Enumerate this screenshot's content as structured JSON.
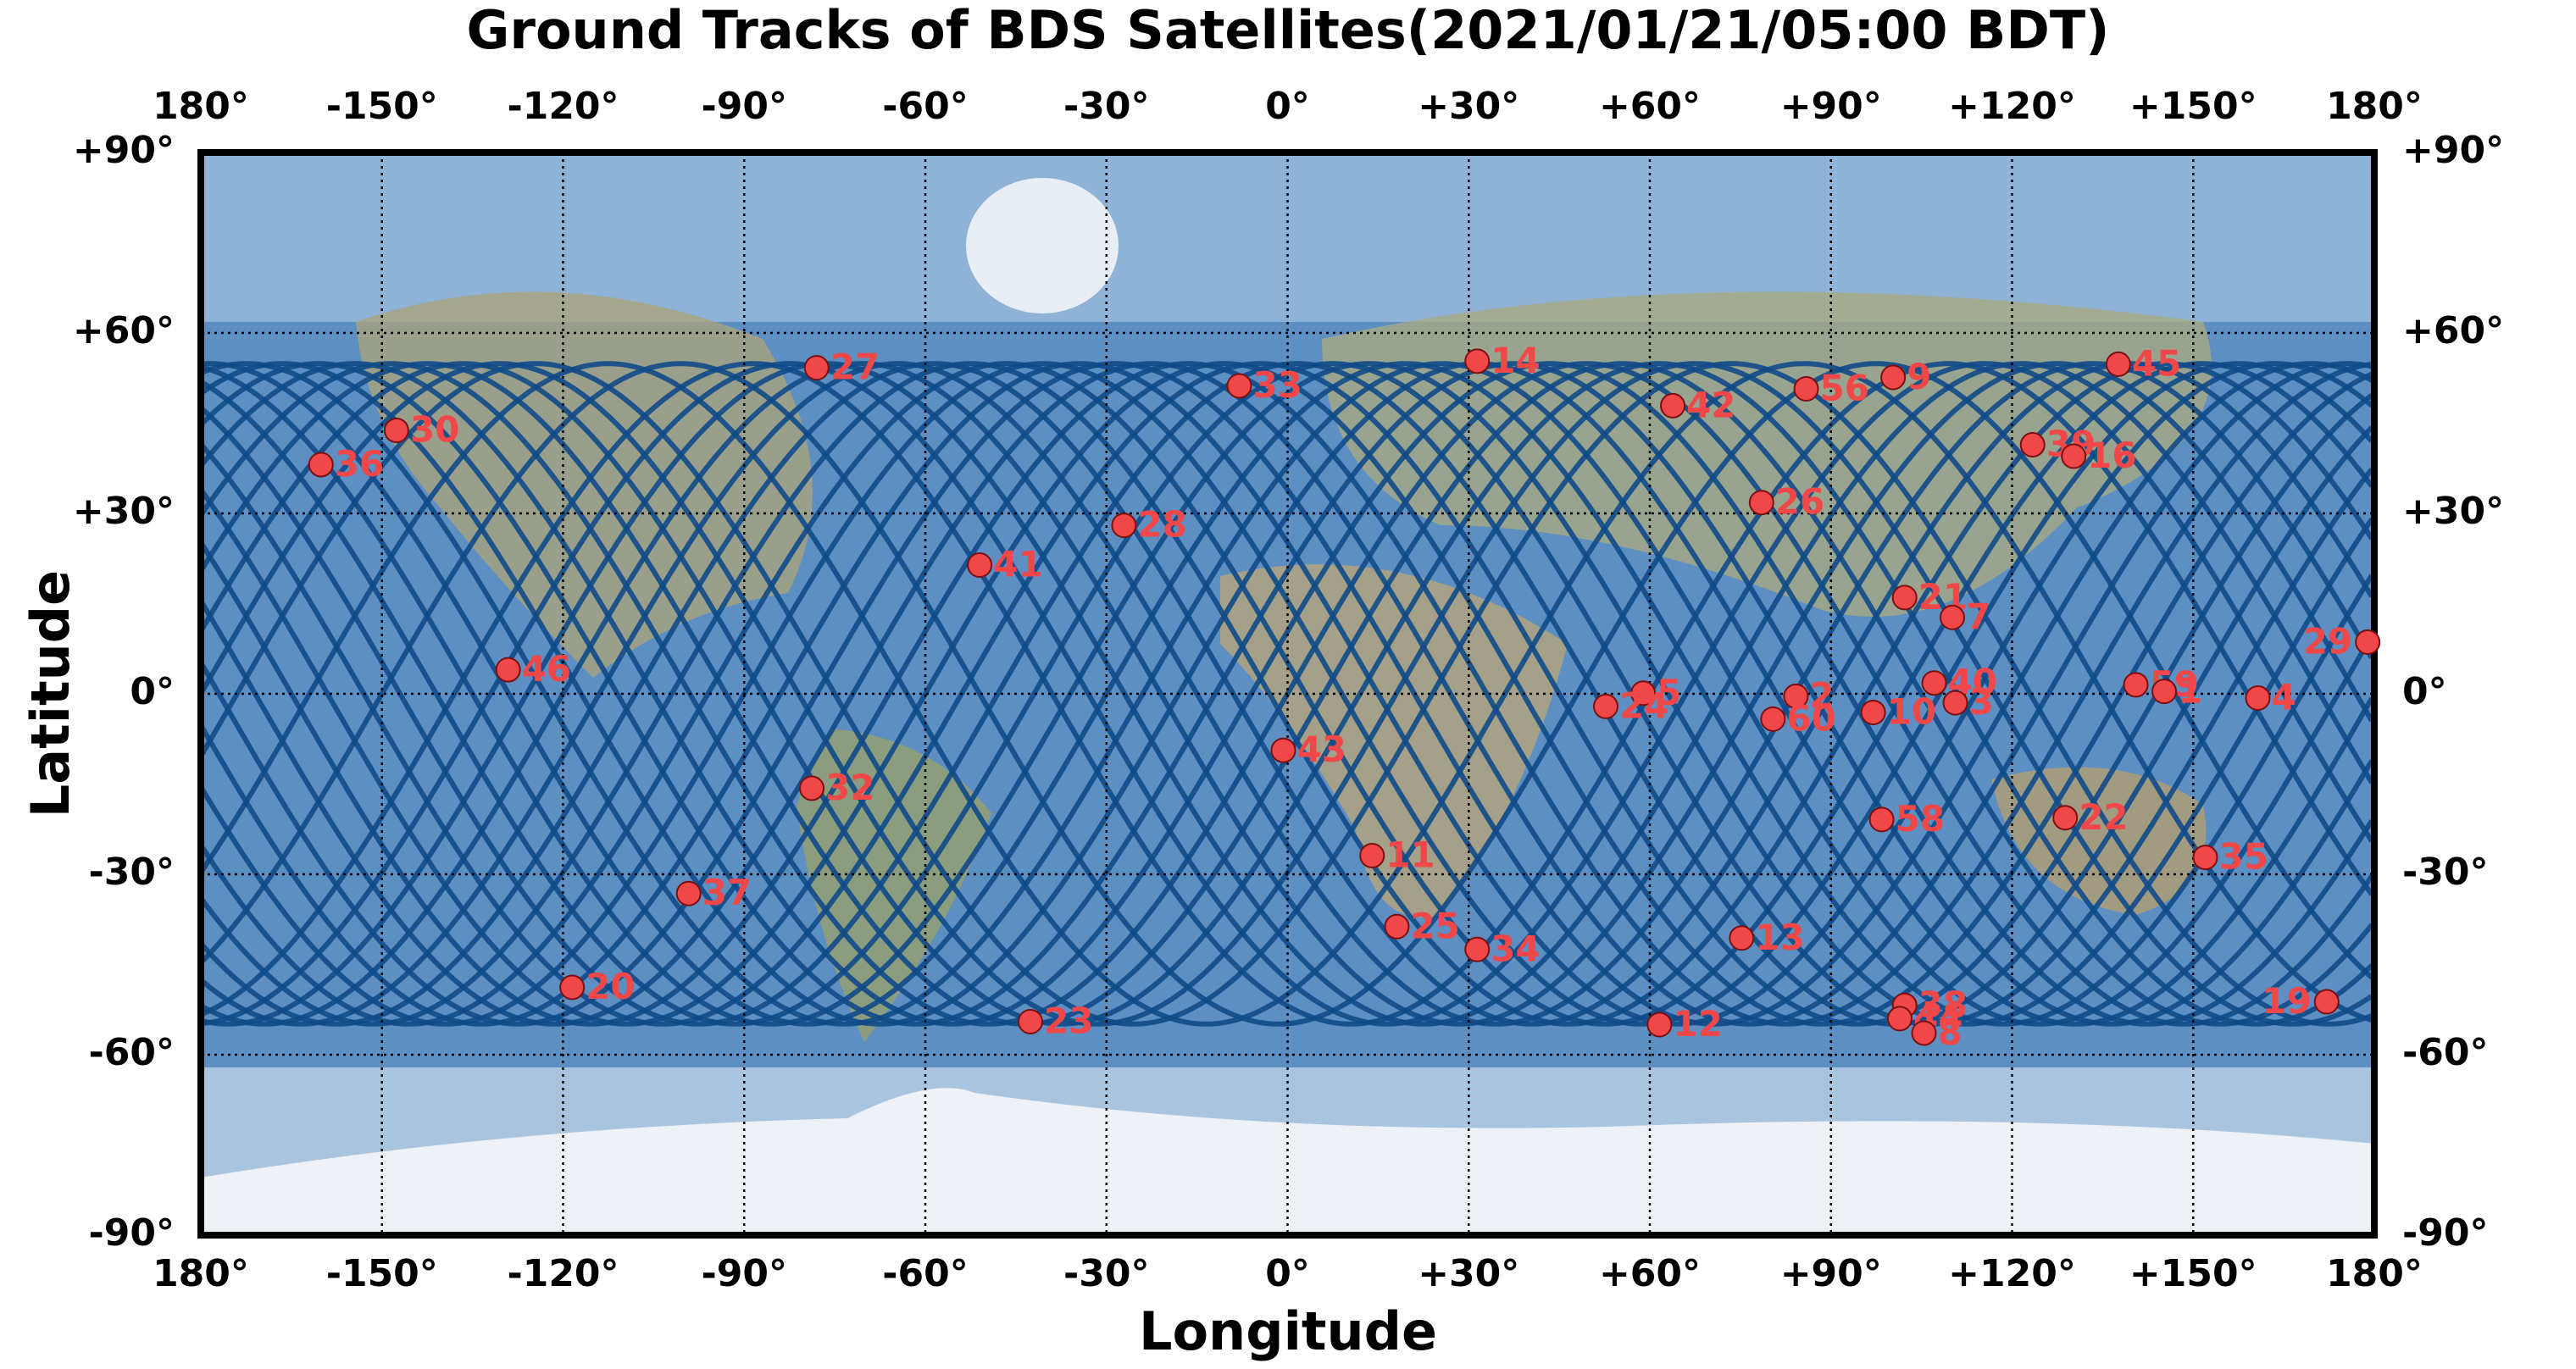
{
  "chart_data": {
    "type": "scatter",
    "title": "Ground Tracks of BDS Satellites(2021/01/21/05:00 BDT)",
    "xlabel": "Longitude",
    "ylabel": "Latitude",
    "labels": [
      "27",
      "33",
      "14",
      "42",
      "56",
      "9",
      "45",
      "30",
      "36",
      "39",
      "16",
      "28",
      "41",
      "26",
      "21",
      "7",
      "29",
      "46",
      "5",
      "24",
      "2",
      "60",
      "40",
      "10",
      "3",
      "59",
      "1",
      "4",
      "43",
      "32",
      "58",
      "22",
      "11",
      "35",
      "37",
      "25",
      "34",
      "13",
      "20",
      "23",
      "12",
      "38",
      "44",
      "8",
      "19"
    ],
    "x": [
      -78,
      -8,
      31.4,
      63.8,
      85.9,
      100.3,
      137.6,
      -147.6,
      -160.1,
      123.4,
      130.2,
      -27.1,
      -51,
      78.5,
      102.2,
      110.1,
      178.9,
      -129.1,
      58.9,
      52.7,
      84.2,
      80.4,
      107.1,
      97,
      110.6,
      140.5,
      145.2,
      160.7,
      -0.7,
      -78.8,
      98.4,
      128.8,
      14,
      152,
      -99.2,
      18.1,
      31.4,
      75.2,
      -118.5,
      -42.6,
      61.6,
      102.2,
      101.4,
      105.4,
      172.1
    ],
    "values": [
      54.2,
      51.2,
      55.3,
      47.9,
      50.7,
      52.6,
      54.8,
      43.8,
      38.1,
      41.4,
      39.5,
      28,
      21.4,
      31.8,
      16,
      12.7,
      8.6,
      4,
      0.1,
      -2.1,
      -0.4,
      -4.2,
      1.8,
      -3.1,
      -1.5,
      1.5,
      0.4,
      -0.7,
      -9.4,
      -15.7,
      -20.9,
      -20.6,
      -26.9,
      -27.2,
      -33.2,
      -38.7,
      -42.5,
      -40.6,
      -48.8,
      -54.5,
      -55,
      -51.8,
      -54,
      -56.4,
      -51.2
    ],
    "color": "#f04848",
    "track_color": "#0f4a88",
    "xlim": [
      -180,
      180
    ],
    "ylim": [
      -90,
      90
    ],
    "xticks": [
      {
        "value": -180,
        "label": "180°"
      },
      {
        "value": -150,
        "label": "-150°"
      },
      {
        "value": -120,
        "label": "-120°"
      },
      {
        "value": -90,
        "label": "-90°"
      },
      {
        "value": -60,
        "label": "-60°"
      },
      {
        "value": -30,
        "label": "-30°"
      },
      {
        "value": 0,
        "label": "0°"
      },
      {
        "value": 30,
        "label": "+30°"
      },
      {
        "value": 60,
        "label": "+60°"
      },
      {
        "value": 90,
        "label": "+90°"
      },
      {
        "value": 120,
        "label": "+120°"
      },
      {
        "value": 150,
        "label": "+150°"
      },
      {
        "value": 180,
        "label": "180°"
      }
    ],
    "yticks": [
      {
        "value": -90,
        "label": "-90°"
      },
      {
        "value": -60,
        "label": "-60°"
      },
      {
        "value": -30,
        "label": "-30°"
      },
      {
        "value": 0,
        "label": "0°"
      },
      {
        "value": 30,
        "label": "+30°"
      },
      {
        "value": 60,
        "label": "+60°"
      },
      {
        "value": 90,
        "label": "+90°"
      }
    ],
    "grid": true
  }
}
